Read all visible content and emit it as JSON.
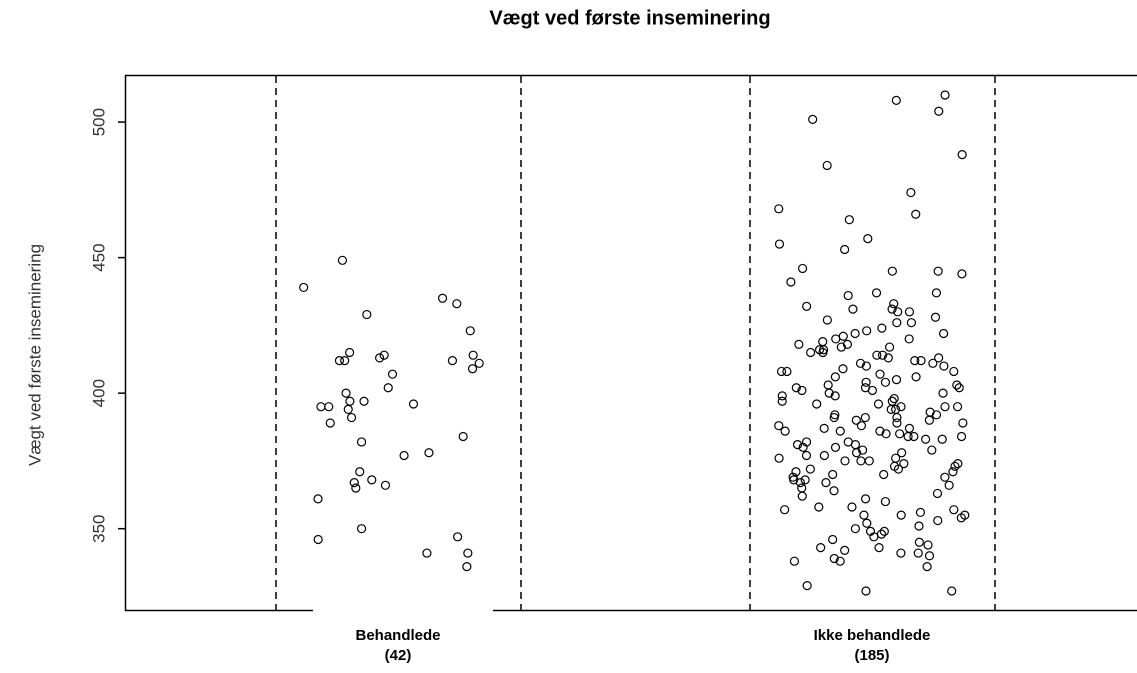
{
  "chart_data": {
    "type": "strip",
    "title": "Vægt ved første inseminering",
    "y_label": "Vægt ved første inseminering",
    "categories": [
      [
        "Behandlede",
        "(42)"
      ],
      [
        "Ikke behandlede",
        "(185)"
      ]
    ],
    "ylim": [
      320,
      517
    ],
    "yticks": [
      350,
      400,
      450,
      500
    ],
    "series": [
      {
        "color": "#000000",
        "values": [
          433,
          423,
          413,
          414,
          414,
          407,
          391,
          378,
          361,
          350,
          341,
          341,
          336,
          368,
          346,
          394,
          377,
          382,
          371,
          400,
          397,
          396,
          395,
          395,
          389,
          429,
          412,
          412,
          411,
          402,
          384,
          366,
          347,
          449,
          435,
          439,
          397,
          367,
          365,
          409,
          415,
          412
        ]
      },
      {
        "color": "#000000",
        "values": [
          504,
          510,
          508,
          501,
          488,
          484,
          474,
          468,
          466,
          464,
          457,
          455,
          453,
          446,
          445,
          445,
          444,
          441,
          437,
          437,
          436,
          432,
          431,
          431,
          430,
          428,
          427,
          426,
          424,
          423,
          422,
          422,
          421,
          420,
          420,
          419,
          418,
          417,
          417,
          416,
          416,
          415,
          415,
          414,
          414,
          413,
          413,
          412,
          411,
          411,
          410,
          410,
          409,
          408,
          408,
          407,
          406,
          406,
          405,
          404,
          404,
          403,
          403,
          402,
          402,
          401,
          401,
          400,
          400,
          399,
          399,
          398,
          397,
          397,
          396,
          396,
          395,
          395,
          394,
          394,
          393,
          392,
          392,
          391,
          391,
          390,
          390,
          389,
          389,
          388,
          388,
          387,
          387,
          386,
          386,
          385,
          385,
          384,
          384,
          383,
          383,
          382,
          382,
          381,
          381,
          380,
          380,
          379,
          379,
          378,
          378,
          377,
          377,
          376,
          376,
          375,
          375,
          374,
          374,
          373,
          373,
          372,
          372,
          371,
          371,
          370,
          370,
          369,
          368,
          368,
          367,
          367,
          366,
          365,
          364,
          363,
          362,
          361,
          360,
          358,
          358,
          357,
          357,
          356,
          355,
          355,
          354,
          353,
          352,
          351,
          350,
          349,
          349,
          348,
          347,
          346,
          345,
          344,
          343,
          343,
          342,
          341,
          341,
          340,
          339,
          338,
          338,
          336,
          329,
          327,
          327,
          433,
          430,
          426,
          418,
          412,
          408,
          395,
          386,
          375,
          402,
          391,
          384,
          369,
          355
        ]
      }
    ]
  }
}
